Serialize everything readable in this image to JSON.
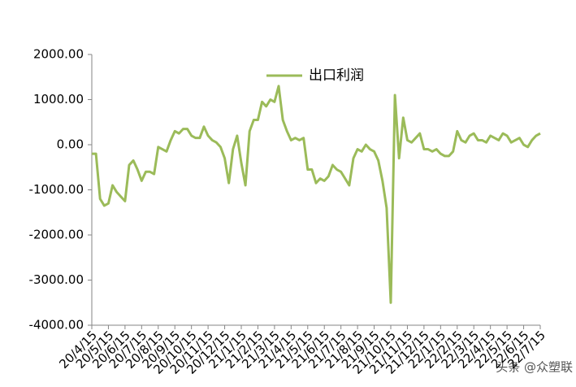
{
  "chart_data": {
    "type": "line",
    "categories": [
      "20/4/15",
      null,
      null,
      null,
      "20/5/15",
      null,
      null,
      null,
      "20/6/15",
      null,
      null,
      null,
      "20/7/15",
      null,
      null,
      null,
      "20/8/15",
      null,
      null,
      null,
      "20/9/15",
      null,
      null,
      null,
      "20/10/15",
      null,
      null,
      null,
      "20/11/15",
      null,
      null,
      null,
      "20/12/15",
      null,
      null,
      null,
      "21/1/15",
      null,
      null,
      null,
      "21/2/15",
      null,
      null,
      null,
      "21/3/15",
      null,
      null,
      null,
      "21/4/15",
      null,
      null,
      null,
      "21/5/15",
      null,
      null,
      null,
      "21/6/15",
      null,
      null,
      null,
      "21/7/15",
      null,
      null,
      null,
      "21/8/15",
      null,
      null,
      null,
      "21/9/15",
      null,
      null,
      null,
      "21/10/15",
      null,
      null,
      null,
      "21/11/15",
      null,
      null,
      null,
      "21/12/15",
      null,
      null,
      null,
      "22/1/15",
      null,
      null,
      null,
      "22/2/15",
      null,
      null,
      null,
      "22/3/15",
      null,
      null,
      null,
      "22/4/15",
      null,
      null,
      null,
      "22/5/15",
      null,
      null,
      null,
      "22/6/15",
      null,
      null,
      null,
      "22/7/15"
    ],
    "series": [
      {
        "name": "出口利润",
        "color": "#9bbb59",
        "values": [
          -200,
          -200,
          -1200,
          -1350,
          -1300,
          -900,
          -1050,
          -1150,
          -1250,
          -450,
          -350,
          -550,
          -800,
          -600,
          -600,
          -650,
          -50,
          -100,
          -150,
          100,
          300,
          250,
          350,
          350,
          200,
          150,
          150,
          400,
          200,
          100,
          50,
          -50,
          -300,
          -850,
          -100,
          200,
          -400,
          -900,
          300,
          550,
          550,
          950,
          850,
          1000,
          950,
          1300,
          550,
          300,
          100,
          150,
          100,
          150,
          -550,
          -550,
          -850,
          -750,
          -800,
          -700,
          -450,
          -550,
          -600,
          -750,
          -900,
          -300,
          -100,
          -150,
          0,
          -100,
          -150,
          -350,
          -800,
          -1400,
          -3500,
          1100,
          -300,
          600,
          100,
          50,
          150,
          250,
          -100,
          -100,
          -150,
          -100,
          -200,
          -250,
          -250,
          -150,
          300,
          100,
          50,
          200,
          250,
          100,
          100,
          50,
          200,
          150,
          100,
          250,
          200,
          50,
          100,
          150,
          0,
          -50,
          100,
          200,
          250
        ]
      }
    ],
    "ylim": [
      -4000,
      2000
    ],
    "yticks": [
      {
        "value": -4000,
        "label": "-4000.00"
      },
      {
        "value": -3000,
        "label": "-3000.00"
      },
      {
        "value": -2000,
        "label": "-2000.00"
      },
      {
        "value": -1000,
        "label": "-1000.00"
      },
      {
        "value": 0,
        "label": "0.00"
      },
      {
        "value": 1000,
        "label": "1000.00"
      },
      {
        "value": 2000,
        "label": "2000.00"
      }
    ],
    "grid": false,
    "legend": "top",
    "watermark": "头条 @众塑联"
  }
}
